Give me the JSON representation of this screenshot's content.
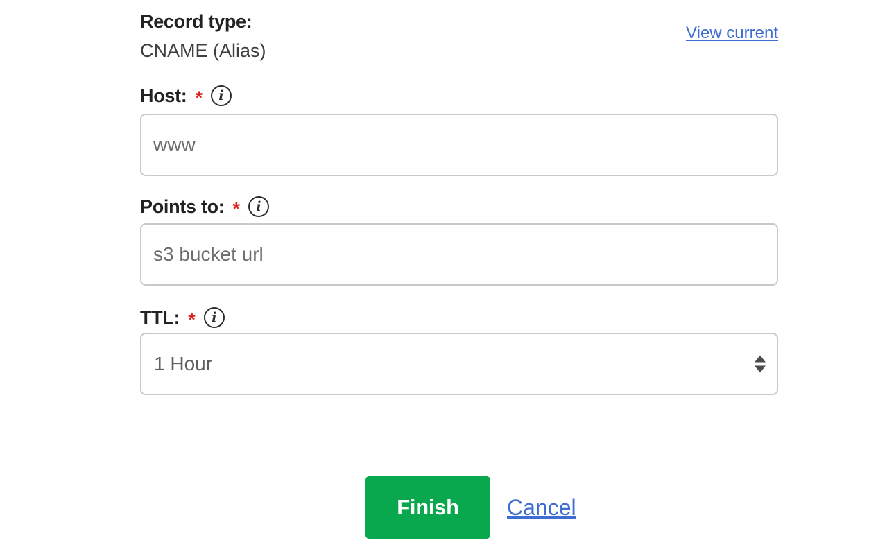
{
  "record_form": {
    "record_type": {
      "label": "Record type:",
      "value": "CNAME (Alias)"
    },
    "view_current_link": "View current",
    "fields": [
      {
        "label": "Host:",
        "required_marker": "*",
        "value": "www",
        "type": "text"
      },
      {
        "label": "Points to:",
        "required_marker": "*",
        "value": "s3 bucket url",
        "type": "text"
      },
      {
        "label": "TTL:",
        "required_marker": "*",
        "value": "1 Hour",
        "type": "select"
      }
    ],
    "actions": {
      "finish_label": "Finish",
      "cancel_label": "Cancel"
    },
    "colors": {
      "accent_green": "#0aa84e",
      "link_blue": "#3f6cd3",
      "required_red": "#dc1f1f",
      "input_border": "#c9c9c9"
    }
  },
  "icons": {
    "info_glyph": "i"
  }
}
